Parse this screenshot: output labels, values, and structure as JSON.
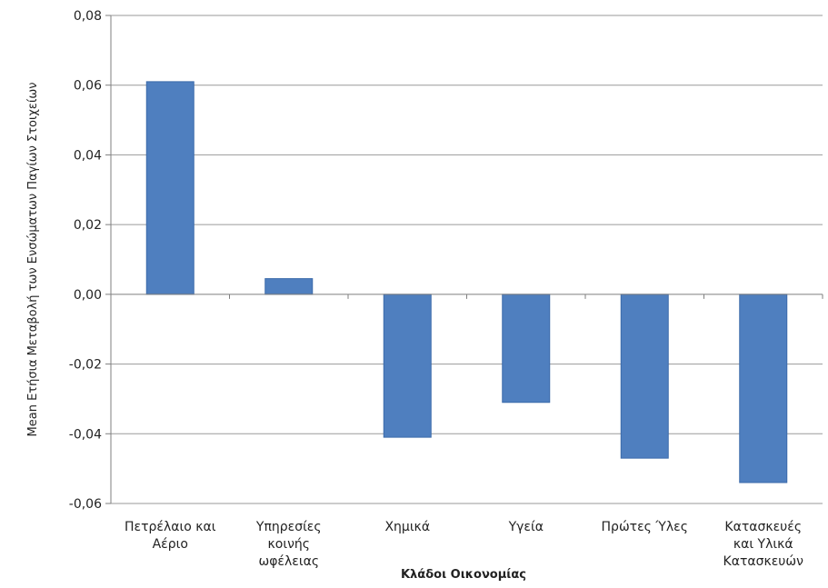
{
  "chart_data": {
    "type": "bar",
    "title": "",
    "xlabel": "Κλάδοι Οικονομίας",
    "ylabel": "Mean Ετήσια Μεταβολή των Ενσώματων Παγίων Στοιχείων",
    "categories": [
      [
        "Πετρέλαιο και",
        "Αέριο"
      ],
      [
        "Υπηρεσίες",
        "κοινής",
        "ωφέλειας"
      ],
      [
        "Χημικά"
      ],
      [
        "Υγεία"
      ],
      [
        "Πρώτες Ύλες"
      ],
      [
        "Κατασκευές",
        "και Υλικά",
        "Κατασκευών"
      ]
    ],
    "values": [
      0.061,
      0.0045,
      -0.041,
      -0.031,
      -0.047,
      -0.054
    ],
    "ylim": [
      -0.06,
      0.08
    ],
    "yticks": [
      "-0,06",
      "-0,04",
      "-0,02",
      "0,00",
      "0,02",
      "0,04",
      "0,06",
      "0,08"
    ],
    "ytick_values": [
      -0.06,
      -0.04,
      -0.02,
      0.0,
      0.02,
      0.04,
      0.06,
      0.08
    ],
    "grid": true,
    "legend": "none",
    "colors": {
      "bar": "#4F7FBF",
      "bar_edge": "#3B6AAA",
      "grid": "#9A9A9A",
      "axis": "#7F7F7F",
      "text": "#222222"
    }
  }
}
